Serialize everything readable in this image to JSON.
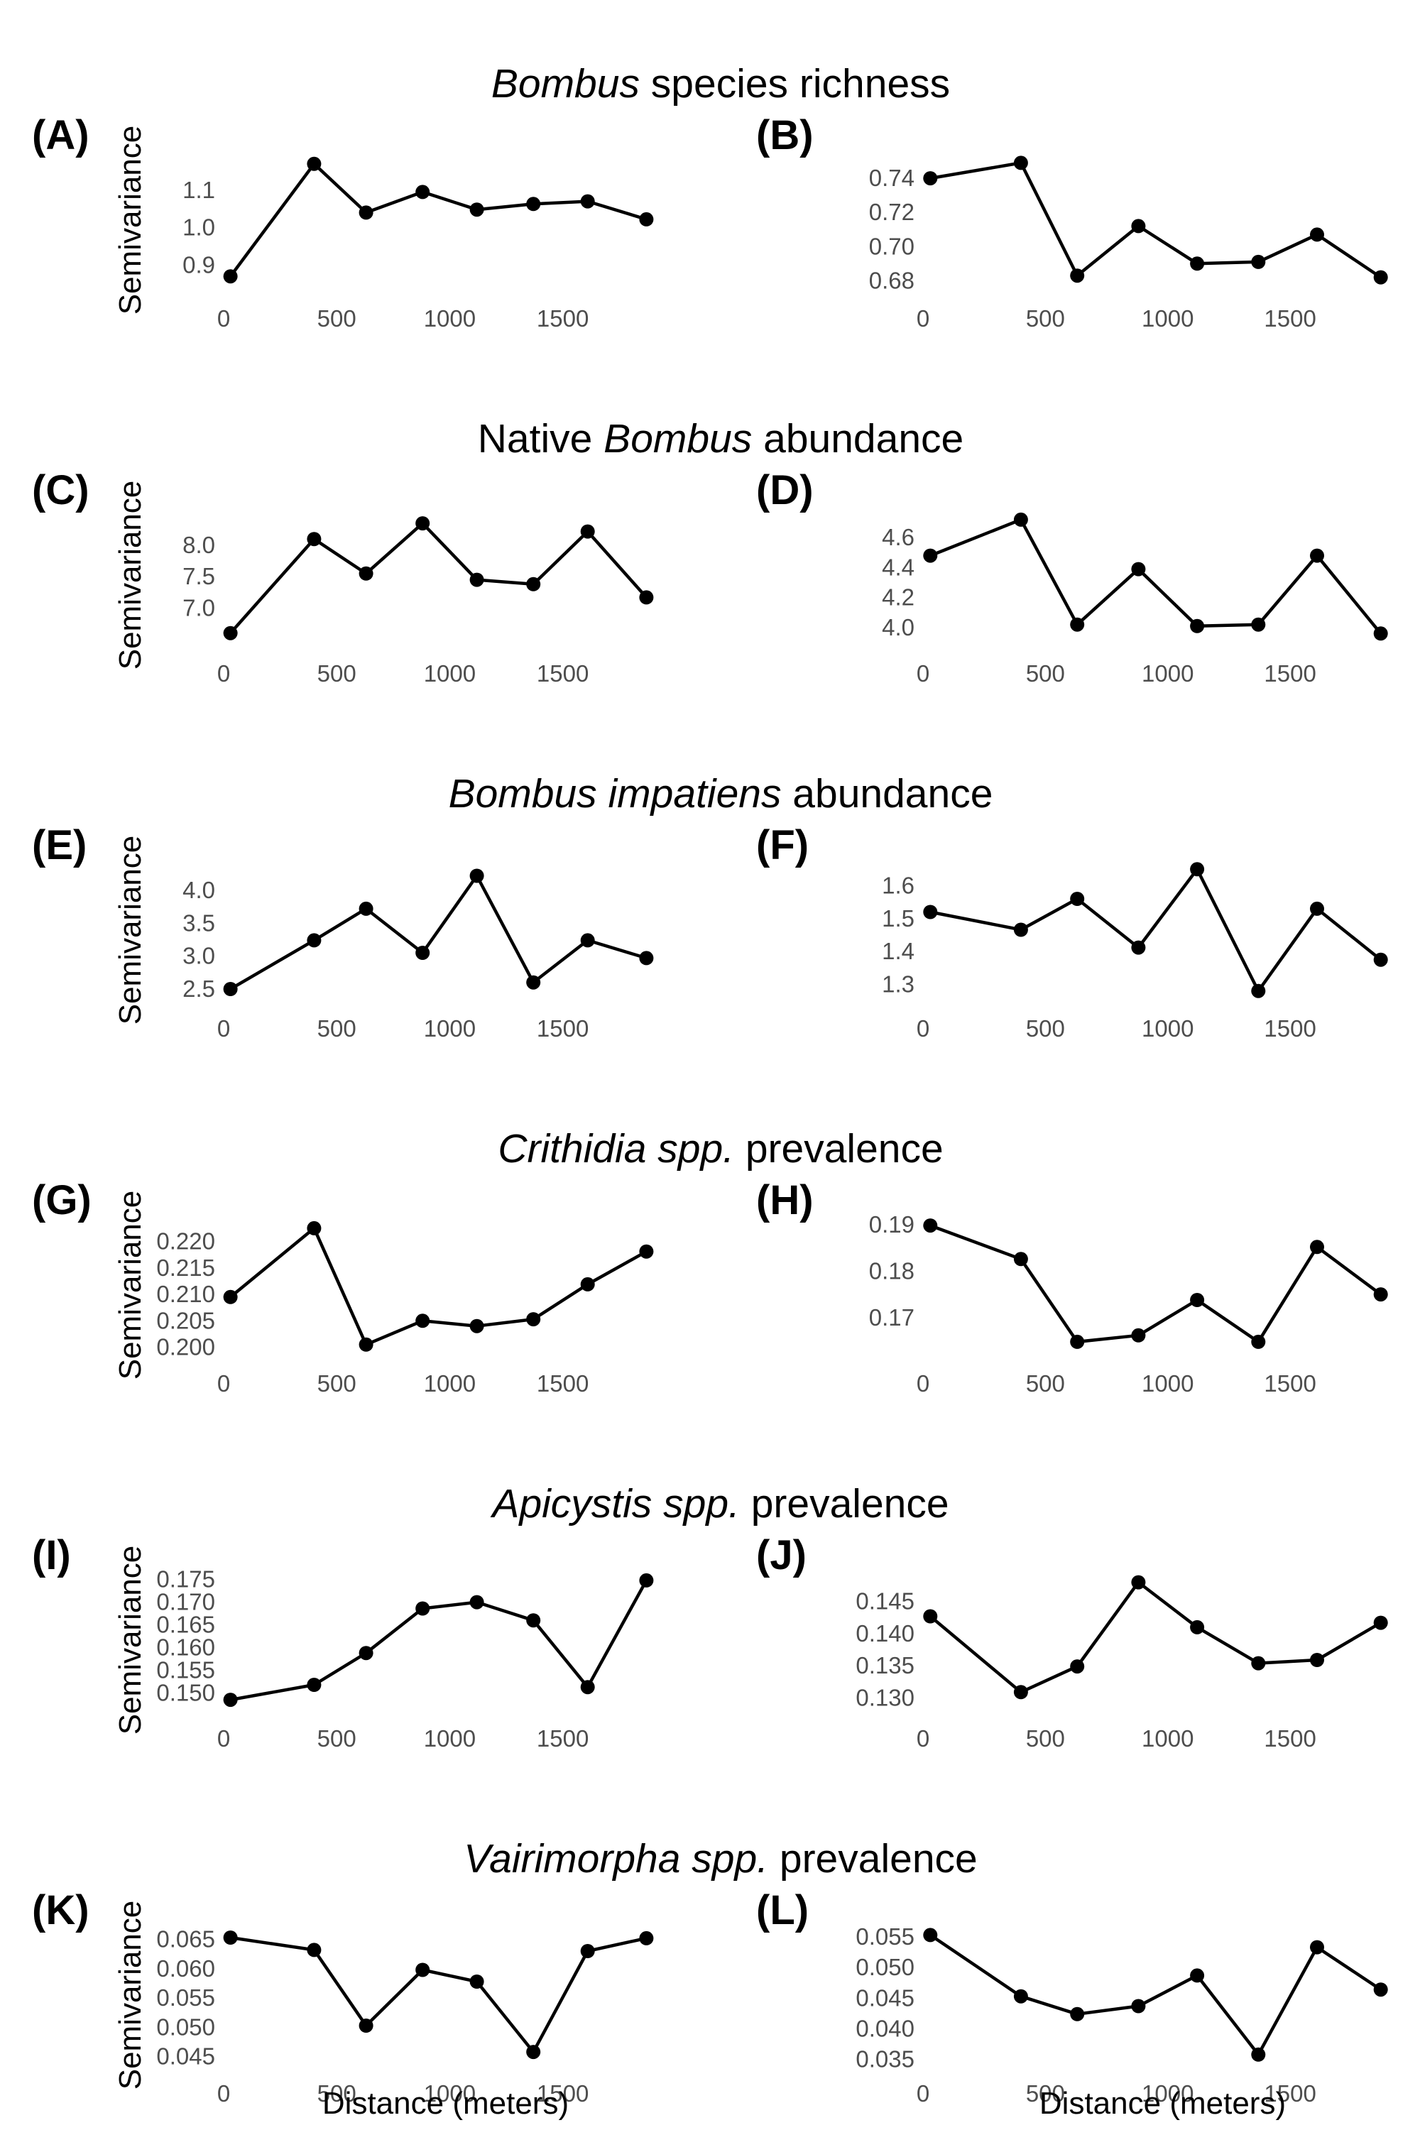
{
  "colors": {
    "line": "#000000",
    "point": "#000000",
    "tick_label": "#4d4d4d",
    "background": "#ffffff"
  },
  "row_titles": [
    {
      "italic": "Bombus",
      "normal": " species richness"
    },
    {
      "pre": "Native ",
      "italic": "Bombus",
      "normal": " abundance"
    },
    {
      "italic": "Bombus impatiens",
      "normal": " abundance"
    },
    {
      "italic": "Crithidia spp.",
      "normal": " prevalence"
    },
    {
      "italic": "Apicystis spp.",
      "normal": " prevalence"
    },
    {
      "italic": "Vairimorpha spp.",
      "normal": " prevalence"
    }
  ],
  "y_axis_label": "Semivariance",
  "x_axis_label": "Distance (meters)",
  "chart_data": [
    {
      "panel": "(A)",
      "type": "line",
      "x": [
        30,
        400,
        630,
        880,
        1120,
        1370,
        1610,
        1870
      ],
      "y": [
        0.87,
        1.17,
        1.04,
        1.095,
        1.048,
        1.063,
        1.07,
        1.022
      ],
      "ylim": [
        0.84,
        1.2
      ],
      "yticks": [
        0.9,
        1.0,
        1.1
      ],
      "ytick_labels": [
        "0.9",
        "1.0",
        "1.1"
      ],
      "xlim": [
        0,
        1900
      ],
      "xticks": [
        0,
        500,
        1000,
        1500
      ],
      "xtick_labels": [
        "0",
        "500",
        "1000",
        "1500"
      ],
      "ylabel": "Semivariance",
      "xlabel": ""
    },
    {
      "panel": "(B)",
      "type": "line",
      "x": [
        30,
        400,
        630,
        880,
        1120,
        1370,
        1610,
        1870
      ],
      "y": [
        0.74,
        0.749,
        0.683,
        0.712,
        0.69,
        0.691,
        0.707,
        0.682
      ],
      "ylim": [
        0.676,
        0.755
      ],
      "yticks": [
        0.68,
        0.7,
        0.72,
        0.74
      ],
      "ytick_labels": [
        "0.68",
        "0.70",
        "0.72",
        "0.74"
      ],
      "xlim": [
        0,
        1900
      ],
      "xticks": [
        0,
        500,
        1000,
        1500
      ],
      "xtick_labels": [
        "0",
        "500",
        "1000",
        "1500"
      ],
      "ylabel": "",
      "xlabel": ""
    },
    {
      "panel": "(C)",
      "type": "line",
      "x": [
        30,
        400,
        630,
        880,
        1120,
        1370,
        1610,
        1870
      ],
      "y": [
        6.6,
        8.1,
        7.55,
        8.35,
        7.45,
        7.38,
        8.22,
        7.17
      ],
      "ylim": [
        6.45,
        8.6
      ],
      "yticks": [
        7.0,
        7.5,
        8.0
      ],
      "ytick_labels": [
        "7.0",
        "7.5",
        "8.0"
      ],
      "xlim": [
        0,
        1900
      ],
      "xticks": [
        0,
        500,
        1000,
        1500
      ],
      "xtick_labels": [
        "0",
        "500",
        "1000",
        "1500"
      ],
      "ylabel": "Semivariance",
      "xlabel": ""
    },
    {
      "panel": "(D)",
      "type": "line",
      "x": [
        30,
        400,
        630,
        880,
        1120,
        1370,
        1610,
        1870
      ],
      "y": [
        4.48,
        4.72,
        4.02,
        4.39,
        4.01,
        4.02,
        4.48,
        3.96
      ],
      "ylim": [
        3.9,
        4.8
      ],
      "yticks": [
        4.0,
        4.2,
        4.4,
        4.6
      ],
      "ytick_labels": [
        "4.0",
        "4.2",
        "4.4",
        "4.6"
      ],
      "xlim": [
        0,
        1900
      ],
      "xticks": [
        0,
        500,
        1000,
        1500
      ],
      "xtick_labels": [
        "0",
        "500",
        "1000",
        "1500"
      ],
      "ylabel": "",
      "xlabel": ""
    },
    {
      "panel": "(E)",
      "type": "line",
      "x": [
        30,
        400,
        630,
        880,
        1120,
        1370,
        1610,
        1870
      ],
      "y": [
        2.5,
        3.24,
        3.72,
        3.05,
        4.22,
        2.6,
        3.24,
        2.97
      ],
      "ylim": [
        2.37,
        4.42
      ],
      "yticks": [
        2.5,
        3.0,
        3.5,
        4.0
      ],
      "ytick_labels": [
        "2.5",
        "3.0",
        "3.5",
        "4.0"
      ],
      "xlim": [
        0,
        1900
      ],
      "xticks": [
        0,
        500,
        1000,
        1500
      ],
      "xtick_labels": [
        "0",
        "500",
        "1000",
        "1500"
      ],
      "ylabel": "Semivariance",
      "xlabel": ""
    },
    {
      "panel": "(F)",
      "type": "line",
      "x": [
        30,
        400,
        630,
        880,
        1120,
        1370,
        1610,
        1870
      ],
      "y": [
        1.52,
        1.466,
        1.56,
        1.412,
        1.65,
        1.28,
        1.53,
        1.375
      ],
      "ylim": [
        1.26,
        1.67
      ],
      "yticks": [
        1.3,
        1.4,
        1.5,
        1.6
      ],
      "ytick_labels": [
        "1.3",
        "1.4",
        "1.5",
        "1.6"
      ],
      "xlim": [
        0,
        1900
      ],
      "xticks": [
        0,
        500,
        1000,
        1500
      ],
      "xtick_labels": [
        "0",
        "500",
        "1000",
        "1500"
      ],
      "ylabel": "",
      "xlabel": ""
    },
    {
      "panel": "(G)",
      "type": "line",
      "x": [
        30,
        400,
        630,
        880,
        1120,
        1370,
        1610,
        1870
      ],
      "y": [
        0.2095,
        0.2225,
        0.2005,
        0.205,
        0.204,
        0.2053,
        0.2119,
        0.2181
      ],
      "ylim": [
        0.199,
        0.2245
      ],
      "yticks": [
        0.2,
        0.205,
        0.21,
        0.215,
        0.22
      ],
      "ytick_labels": [
        "0.200",
        "0.205",
        "0.210",
        "0.215",
        "0.220"
      ],
      "xlim": [
        0,
        1900
      ],
      "xticks": [
        0,
        500,
        1000,
        1500
      ],
      "xtick_labels": [
        "0",
        "500",
        "1000",
        "1500"
      ],
      "ylabel": "Semivariance",
      "xlabel": ""
    },
    {
      "panel": "(H)",
      "type": "line",
      "x": [
        30,
        400,
        630,
        880,
        1120,
        1370,
        1610,
        1870
      ],
      "y": [
        0.1898,
        0.1826,
        0.1648,
        0.1662,
        0.1738,
        0.1648,
        0.1852,
        0.175
      ],
      "ylim": [
        0.1625,
        0.1915
      ],
      "yticks": [
        0.17,
        0.18,
        0.19
      ],
      "ytick_labels": [
        "0.17",
        "0.18",
        "0.19"
      ],
      "xlim": [
        0,
        1900
      ],
      "xticks": [
        0,
        500,
        1000,
        1500
      ],
      "xtick_labels": [
        "0",
        "500",
        "1000",
        "1500"
      ],
      "ylabel": "",
      "xlabel": ""
    },
    {
      "panel": "(I)",
      "type": "line",
      "x": [
        30,
        400,
        630,
        880,
        1120,
        1370,
        1610,
        1870
      ],
      "y": [
        0.1485,
        0.1518,
        0.1588,
        0.1686,
        0.17,
        0.166,
        0.1513,
        0.1748
      ],
      "ylim": [
        0.1468,
        0.1765
      ],
      "yticks": [
        0.15,
        0.155,
        0.16,
        0.165,
        0.17,
        0.175
      ],
      "ytick_labels": [
        "0.150",
        "0.155",
        "0.160",
        "0.165",
        "0.170",
        "0.175"
      ],
      "xlim": [
        0,
        1900
      ],
      "xticks": [
        0,
        500,
        1000,
        1500
      ],
      "xtick_labels": [
        "0",
        "500",
        "1000",
        "1500"
      ],
      "ylabel": "Semivariance",
      "xlabel": ""
    },
    {
      "panel": "(J)",
      "type": "line",
      "x": [
        30,
        400,
        630,
        880,
        1120,
        1370,
        1610,
        1870
      ],
      "y": [
        0.1427,
        0.1309,
        0.1349,
        0.148,
        0.141,
        0.1354,
        0.1359,
        0.1417
      ],
      "ylim": [
        0.1285,
        0.1495
      ],
      "yticks": [
        0.13,
        0.135,
        0.14,
        0.145
      ],
      "ytick_labels": [
        "0.130",
        "0.135",
        "0.140",
        "0.145"
      ],
      "xlim": [
        0,
        1900
      ],
      "xticks": [
        0,
        500,
        1000,
        1500
      ],
      "xtick_labels": [
        "0",
        "500",
        "1000",
        "1500"
      ],
      "ylabel": "",
      "xlabel": ""
    },
    {
      "panel": "(K)",
      "type": "line",
      "x": [
        30,
        400,
        630,
        880,
        1120,
        1370,
        1610,
        1870
      ],
      "y": [
        0.0653,
        0.0632,
        0.0503,
        0.0598,
        0.0578,
        0.0458,
        0.063,
        0.0652
      ],
      "ylim": [
        0.044,
        0.067
      ],
      "yticks": [
        0.045,
        0.05,
        0.055,
        0.06,
        0.065
      ],
      "ytick_labels": [
        "0.045",
        "0.050",
        "0.055",
        "0.060",
        "0.065"
      ],
      "xlim": [
        0,
        1900
      ],
      "xticks": [
        0,
        500,
        1000,
        1500
      ],
      "xtick_labels": [
        "0",
        "500",
        "1000",
        "1500"
      ],
      "ylabel": "Semivariance",
      "xlabel": "Distance (meters)"
    },
    {
      "panel": "(L)",
      "type": "line",
      "x": [
        30,
        400,
        630,
        880,
        1120,
        1370,
        1610,
        1870
      ],
      "y": [
        0.0553,
        0.0453,
        0.0424,
        0.0437,
        0.0487,
        0.0358,
        0.0533,
        0.0464
      ],
      "ylim": [
        0.0345,
        0.0565
      ],
      "yticks": [
        0.035,
        0.04,
        0.045,
        0.05,
        0.055
      ],
      "ytick_labels": [
        "0.035",
        "0.040",
        "0.045",
        "0.050",
        "0.055"
      ],
      "xlim": [
        0,
        1900
      ],
      "xticks": [
        0,
        500,
        1000,
        1500
      ],
      "xtick_labels": [
        "0",
        "500",
        "1000",
        "1500"
      ],
      "ylabel": "",
      "xlabel": "Distance (meters)"
    }
  ]
}
